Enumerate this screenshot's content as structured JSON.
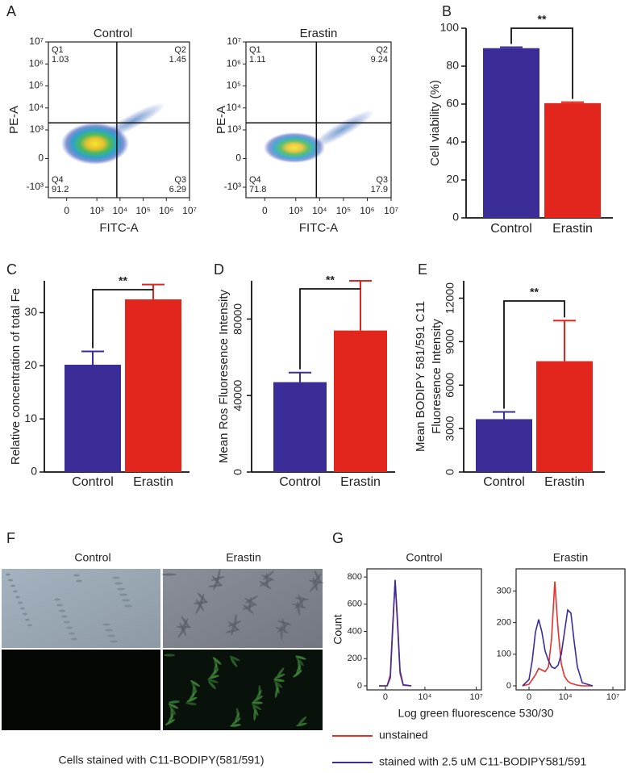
{
  "panel_labels": [
    "A",
    "B",
    "C",
    "D",
    "E",
    "F",
    "G"
  ],
  "chart_data": [
    {
      "type": "density",
      "title": "Control",
      "xlabel": "FITC-A",
      "ylabel": "PE-A",
      "xscale": "asinh",
      "yscale": "asinh",
      "xlim": [
        -300,
        10000000
      ],
      "ylim": [
        -3000,
        10000000
      ],
      "xticks": [
        0,
        {
          "value": 1000,
          "label": "10³"
        },
        {
          "value": 10000,
          "label": "10⁴"
        },
        {
          "value": 100000,
          "label": "10⁵"
        },
        {
          "value": 1000000,
          "label": "10⁶"
        },
        {
          "value": 10000000,
          "label": "10⁷"
        }
      ],
      "yticks": [
        {
          "value": -1000,
          "label": "-10³"
        },
        0,
        {
          "value": 1000,
          "label": "10³"
        },
        {
          "value": 10000,
          "label": "10⁴"
        },
        {
          "value": 100000,
          "label": "10⁵"
        },
        {
          "value": 1000000,
          "label": "10⁶"
        },
        {
          "value": 10000000,
          "label": "10⁷"
        }
      ],
      "gate": {
        "x": 7300,
        "y": 2100
      },
      "quadrants": [
        {
          "name": "Q1",
          "value": 1.03
        },
        {
          "name": "Q2",
          "value": 1.45
        },
        {
          "name": "Q3",
          "value": 6.29
        },
        {
          "name": "Q4",
          "value": 91.2
        }
      ]
    },
    {
      "type": "density",
      "title": "Erastin",
      "xlabel": "FITC-A",
      "ylabel": "PE-A",
      "xscale": "asinh",
      "yscale": "asinh",
      "xlim": [
        -300,
        10000000
      ],
      "ylim": [
        -3000,
        10000000
      ],
      "xticks": [
        0,
        {
          "value": 1000,
          "label": "10³"
        },
        {
          "value": 10000,
          "label": "10⁴"
        },
        {
          "value": 100000,
          "label": "10⁵"
        },
        {
          "value": 1000000,
          "label": "10⁶"
        },
        {
          "value": 10000000,
          "label": "10⁷"
        }
      ],
      "yticks": [
        {
          "value": -1000,
          "label": "-10³"
        },
        0,
        {
          "value": 1000,
          "label": "10³"
        },
        {
          "value": 10000,
          "label": "10⁴"
        },
        {
          "value": 100000,
          "label": "10⁵"
        },
        {
          "value": 1000000,
          "label": "10⁶"
        },
        {
          "value": 10000000,
          "label": "10⁷"
        }
      ],
      "gate": {
        "x": 7300,
        "y": 2100
      },
      "quadrants": [
        {
          "name": "Q1",
          "value": 1.11
        },
        {
          "name": "Q2",
          "value": 9.24
        },
        {
          "name": "Q3",
          "value": 17.9
        },
        {
          "name": "Q4",
          "value": 71.8
        }
      ]
    },
    {
      "type": "bar",
      "ylabel": "Cell viability (%)",
      "categories": [
        "Control",
        "Erastin"
      ],
      "values": [
        89.5,
        60.5
      ],
      "errors": [
        0.5,
        0.5
      ],
      "colors": [
        "#3a2d98",
        "#e2261d"
      ],
      "ylim": [
        0,
        100
      ],
      "yticks": [
        0,
        20,
        40,
        60,
        80,
        100
      ],
      "annotation": "**"
    },
    {
      "type": "bar",
      "ylabel": "Relative concentration of total Fe",
      "categories": [
        "Control",
        "Erastin"
      ],
      "values": [
        20.2,
        32.5
      ],
      "errors": [
        2.5,
        2.8
      ],
      "colors": [
        "#3a2d98",
        "#e2261d"
      ],
      "ylim": [
        0,
        36
      ],
      "yticks": [
        0,
        10,
        20,
        30
      ],
      "annotation": "**"
    },
    {
      "type": "bar",
      "ylabel": "Mean Ros  Fluoresence Intensity",
      "categories": [
        "Control",
        "Erastin"
      ],
      "values": [
        47000,
        74000
      ],
      "errors": [
        5000,
        26000
      ],
      "colors": [
        "#3a2d98",
        "#e2261d"
      ],
      "ylim": [
        0,
        100000
      ],
      "yticks": [
        0,
        40000,
        80000
      ],
      "annotation": "**"
    },
    {
      "type": "bar",
      "ylabel": [
        "Mean BODIPY 581/591 C11",
        "Fluoresence Intensity"
      ],
      "categories": [
        "Control",
        "Erastin"
      ],
      "values": [
        3650,
        7650
      ],
      "errors": [
        500,
        2800
      ],
      "colors": [
        "#3a2d98",
        "#e2261d"
      ],
      "ylim": [
        0,
        13200
      ],
      "yticks": [
        0,
        3000,
        6000,
        9000,
        12000
      ],
      "annotation": "**"
    },
    {
      "type": "line",
      "title": "Control",
      "xlabel": "Log green fluorescence 530/30",
      "ylabel": "Count",
      "xscale": "asinh",
      "x": [
        -98,
        22,
        70,
        114,
        171,
        251,
        348,
        540,
        1620
      ],
      "series": [
        {
          "name": "unstained",
          "color": "#e8302a",
          "values": [
            0,
            0,
            80,
            450,
            770,
            420,
            90,
            5,
            0
          ]
        },
        {
          "name": "stained with 2.5 uM C11-BODIPY581/591",
          "color": "#3a2d98",
          "values": [
            0,
            0,
            60,
            420,
            780,
            450,
            110,
            8,
            0
          ]
        }
      ],
      "xlim": [
        -600,
        20000000
      ],
      "ylim": [
        0,
        860
      ],
      "xticks": [
        0,
        {
          "value": 10000,
          "label": "10⁴"
        },
        {
          "value": 10000000,
          "label": "10⁷"
        }
      ],
      "yticks": [
        0,
        200,
        400,
        600,
        800
      ]
    },
    {
      "type": "line",
      "title": "Erastin",
      "xscale": "asinh",
      "x": [
        -108,
        0,
        49,
        108,
        193,
        320,
        520,
        837,
        1340,
        2140,
        3430,
        5450,
        8710,
        13940,
        22300,
        35700,
        57000,
        116000,
        530000
      ],
      "series": [
        {
          "color": "#e8302a",
          "values": [
            0,
            5,
            20,
            35,
            55,
            50,
            45,
            60,
            150,
            330,
            180,
            70,
            30,
            15,
            8,
            5,
            2,
            0,
            0
          ]
        },
        {
          "color": "#3a2d98",
          "values": [
            0,
            20,
            80,
            170,
            210,
            170,
            110,
            80,
            60,
            55,
            65,
            100,
            170,
            240,
            230,
            140,
            60,
            10,
            0
          ]
        }
      ],
      "xlim": [
        -320,
        58000000
      ],
      "ylim": [
        0,
        370
      ],
      "xticks": [
        0,
        {
          "value": 10000,
          "label": "10⁴"
        },
        {
          "value": 10000000,
          "label": "10⁷"
        }
      ],
      "yticks": [
        0,
        100,
        200,
        300
      ]
    }
  ],
  "image_panel": {
    "columns": [
      "Control",
      "Erastin"
    ],
    "caption": "Cells stained with C11-BODIPY(581/591)"
  }
}
